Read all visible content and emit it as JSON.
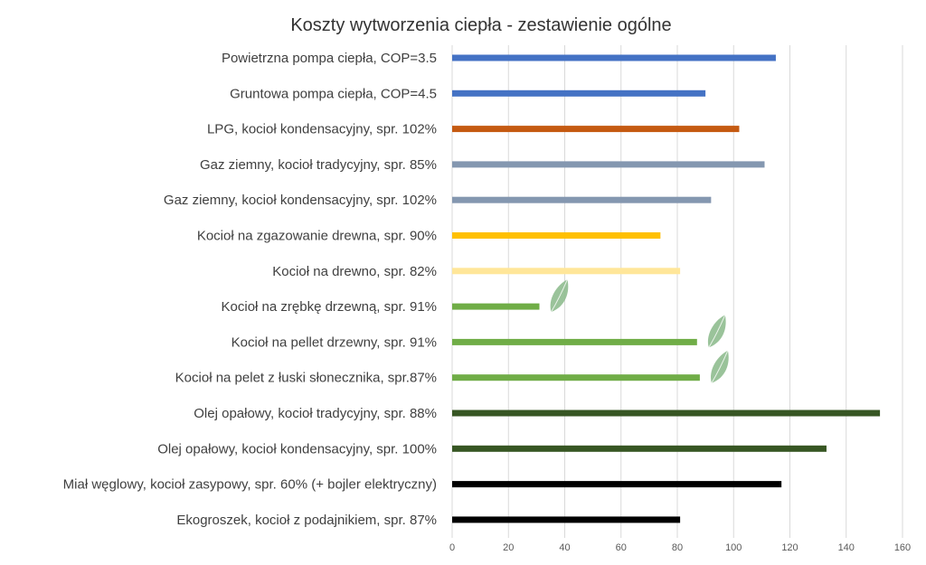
{
  "chart_data": {
    "type": "bar",
    "orientation": "horizontal",
    "title": "Koszty wytworzenia ciepła - zestawienie ogólne",
    "xlabel": "",
    "ylabel": "",
    "xlim": [
      0,
      160
    ],
    "xticks": [
      0,
      20,
      40,
      60,
      80,
      100,
      120,
      140,
      160
    ],
    "grid": true,
    "legend": "none",
    "categories": [
      "Powietrzna pompa ciepła, COP=3.5",
      "Gruntowa pompa ciepła, COP=4.5",
      "LPG, kocioł kondensacyjny, spr. 102%",
      "Gaz ziemny, kocioł tradycyjny, spr. 85%",
      "Gaz ziemny, kocioł kondensacyjny, spr. 102%",
      "Kocioł na zgazowanie drewna, spr. 90%",
      "Kocioł na drewno, spr. 82%",
      "Kocioł na zrębkę drzewną, spr. 91%",
      "Kocioł na pellet drzewny, spr. 91%",
      "Kocioł na pelet z łuski słonecznika, spr.87%",
      "Olej opałowy, kocioł tradycyjny, spr. 88%",
      "Olej opałowy, kocioł kondensacyjny, spr. 100%",
      "Miał węglowy, kocioł zasypowy, spr. 60% (+ bojler elektryczny)",
      "Ekogroszek, kocioł z podajnikiem, spr. 87%"
    ],
    "values": [
      115,
      90,
      102,
      111,
      92,
      74,
      81,
      31,
      87,
      88,
      152,
      133,
      117,
      81
    ],
    "colors": [
      "#4472c4",
      "#4472c4",
      "#c55a11",
      "#8497b0",
      "#8497b0",
      "#ffc000",
      "#ffe699",
      "#70ad47",
      "#70ad47",
      "#70ad47",
      "#375623",
      "#375623",
      "#000000",
      "#000000"
    ],
    "leaf_icon_on": [
      "Kocioł na zrębkę drzewną, spr. 91%",
      "Kocioł na pellet drzewny, spr. 91%",
      "Kocioł na pelet z łuski słonecznika, spr.87%"
    ],
    "leaf_color": "#8fbc8f"
  }
}
